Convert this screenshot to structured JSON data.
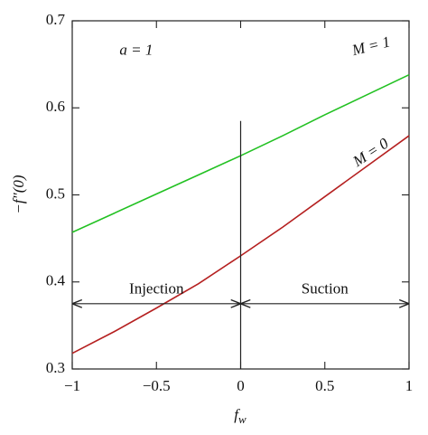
{
  "chart_data": {
    "type": "line",
    "x": [
      -1,
      -0.75,
      -0.5,
      -0.25,
      0,
      0.25,
      0.5,
      0.75,
      1
    ],
    "series": [
      {
        "name": "M = 1",
        "color": "#22c122",
        "values": [
          0.457,
          0.479,
          0.501,
          0.523,
          0.545,
          0.568,
          0.592,
          0.615,
          0.638
        ]
      },
      {
        "name": "M = 0",
        "color": "#b52020",
        "values": [
          0.318,
          0.343,
          0.37,
          0.398,
          0.43,
          0.463,
          0.498,
          0.533,
          0.568
        ]
      }
    ],
    "xlim": [
      -1,
      1
    ],
    "xticks": [
      {
        "value": -1,
        "label": "−1"
      },
      {
        "value": -0.5,
        "label": "−0.5"
      },
      0,
      0.5,
      1
    ],
    "ylim": [
      0.3,
      0.7
    ],
    "yticks": [
      0.3,
      0.4,
      0.5,
      0.6,
      0.7
    ],
    "xlabel": {
      "base": "f",
      "sub": "w"
    },
    "ylabel": "−f″(0)",
    "parameter_label": "a = 1",
    "divider": {
      "x": 0,
      "y": [
        0.3,
        0.585
      ]
    },
    "arrows": {
      "y": 0.375,
      "x": [
        -1,
        0,
        1
      ],
      "labels": [
        "Injection",
        "Suction"
      ]
    }
  }
}
